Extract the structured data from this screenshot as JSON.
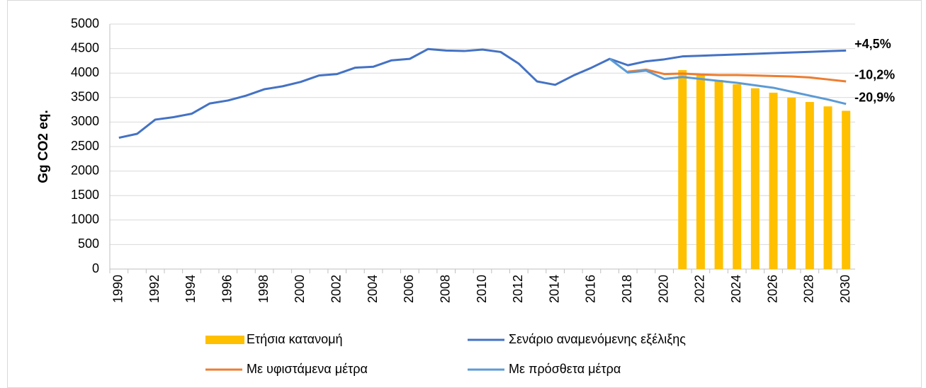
{
  "chart_data": {
    "type": "combo",
    "y_label": "Gg CO2 eq.",
    "categories": [
      "1990",
      null,
      "1992",
      null,
      "1994",
      null,
      "1996",
      null,
      "1998",
      null,
      "2000",
      null,
      "2002",
      null,
      "2004",
      null,
      "2006",
      null,
      "2008",
      null,
      "2010",
      null,
      "2012",
      null,
      "2014",
      null,
      "2016",
      null,
      "2018",
      null,
      "2020",
      null,
      "2022",
      null,
      "2024",
      null,
      "2026",
      null,
      "2028",
      null,
      "2030"
    ],
    "ylim": [
      0,
      5000
    ],
    "yticks": [
      0,
      500,
      1000,
      1500,
      2000,
      2500,
      3000,
      3500,
      4000,
      4500,
      5000
    ],
    "grid": true,
    "series": [
      {
        "name": "Ετήσια κατανομή",
        "type": "bar",
        "color": "#ffc000",
        "values": [
          null,
          null,
          null,
          null,
          null,
          null,
          null,
          null,
          null,
          null,
          null,
          null,
          null,
          null,
          null,
          null,
          null,
          null,
          null,
          null,
          null,
          null,
          null,
          null,
          null,
          null,
          null,
          null,
          null,
          null,
          null,
          4060,
          3960,
          3860,
          3770,
          3690,
          3600,
          3500,
          3410,
          3320,
          3230
        ]
      },
      {
        "name": "Σενάριο αναμενόμενης εξέλιξης",
        "type": "line",
        "color": "#4472c4",
        "end_label": "+4,5%",
        "end_label_color": "#44546a",
        "values": [
          2680,
          2760,
          3050,
          3100,
          3170,
          3380,
          3440,
          3540,
          3670,
          3730,
          3820,
          3950,
          3980,
          4110,
          4130,
          4260,
          4290,
          4490,
          4460,
          4450,
          4480,
          4430,
          4190,
          3830,
          3760,
          3950,
          4110,
          4290,
          4160,
          4240,
          4280,
          4340,
          4353,
          4367,
          4380,
          4393,
          4407,
          4420,
          4433,
          4447,
          4460
        ]
      },
      {
        "name": "Με υφιστάμενα μέτρα",
        "type": "line",
        "color": "#ed7d31",
        "end_label": "-10,2%",
        "end_label_color": "#ed7d31",
        "values": [
          null,
          null,
          null,
          null,
          null,
          null,
          null,
          null,
          null,
          null,
          null,
          null,
          null,
          null,
          null,
          null,
          null,
          null,
          null,
          null,
          null,
          null,
          null,
          null,
          null,
          null,
          null,
          null,
          4030,
          4070,
          3980,
          3990,
          3970,
          3960,
          3960,
          3950,
          3940,
          3930,
          3910,
          3870,
          3830
        ]
      },
      {
        "name": "Με πρόσθετα μέτρα",
        "type": "line",
        "color": "#5b9bd5",
        "end_label": "-20,9%",
        "end_label_color": "#5b9bd5",
        "values": [
          null,
          null,
          null,
          null,
          null,
          null,
          null,
          null,
          null,
          null,
          null,
          null,
          null,
          null,
          null,
          null,
          null,
          null,
          null,
          null,
          null,
          null,
          null,
          null,
          null,
          null,
          null,
          4290,
          4010,
          4050,
          3880,
          3920,
          3880,
          3840,
          3800,
          3750,
          3700,
          3620,
          3540,
          3460,
          3370
        ]
      }
    ]
  }
}
